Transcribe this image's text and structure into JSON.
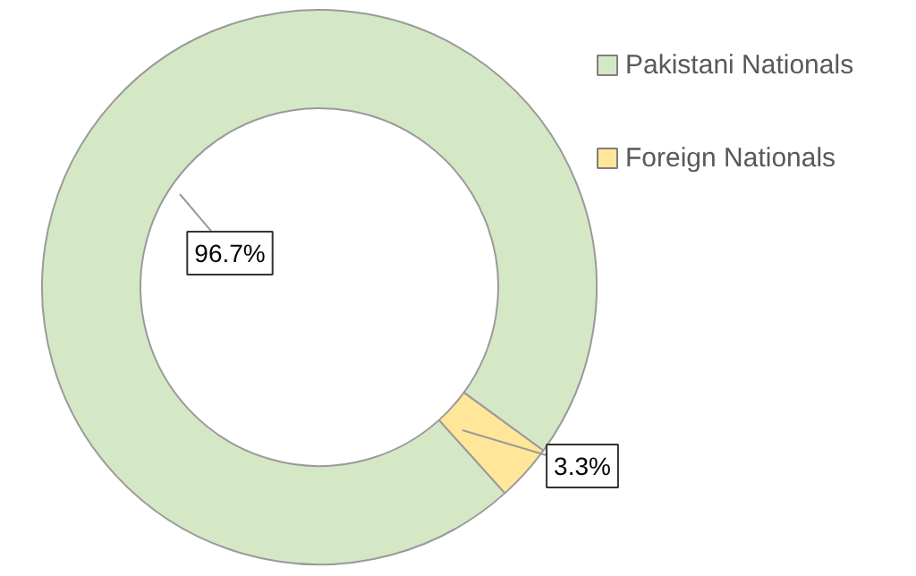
{
  "chart_data": {
    "type": "donut",
    "categories": [
      "Pakistani Nationals",
      "Foreign Nationals"
    ],
    "values": [
      96.7,
      3.3
    ],
    "colors": [
      "#d5e8c5",
      "#ffe699"
    ],
    "value_labels": [
      "96.7%",
      "3.3%"
    ],
    "legend": "right"
  }
}
